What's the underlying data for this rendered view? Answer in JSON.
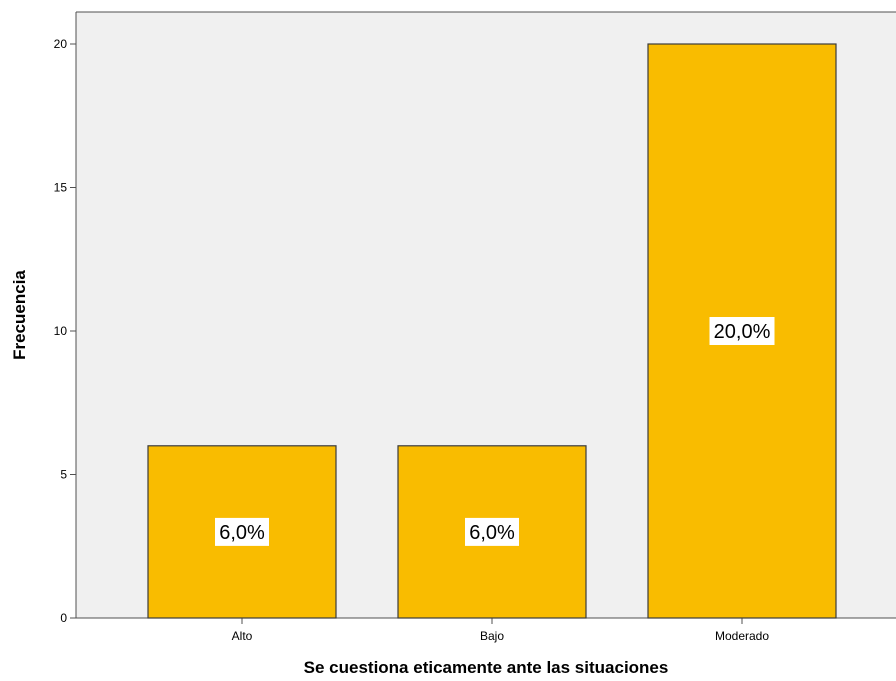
{
  "chart_data": {
    "type": "bar",
    "categories": [
      "Alto",
      "Bajo",
      "Moderado"
    ],
    "values": [
      6,
      6,
      20
    ],
    "data_labels": [
      "6,0%",
      "6,0%",
      "20,0%"
    ],
    "xlabel": "Se cuestiona eticamente ante las situaciones",
    "ylabel": "Frecuencia",
    "ylim": [
      0,
      21
    ],
    "yticks": [
      0,
      5,
      10,
      15,
      20
    ],
    "grid": false,
    "colors": {
      "bar_fill": "#F9BC00",
      "bar_stroke": "#3b3b3b",
      "plot_background": "#F0F0F0",
      "axis": "#505050",
      "label_box": "#ffffff"
    }
  }
}
